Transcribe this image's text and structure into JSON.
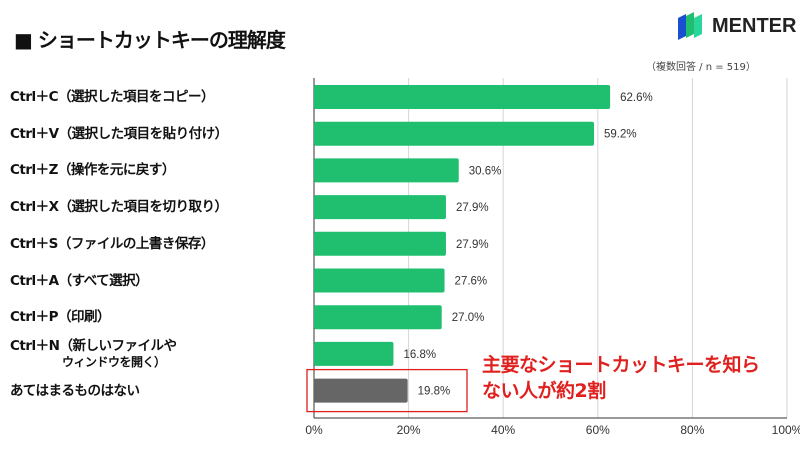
{
  "title": "■ ショートカットキーの理解度",
  "logo": {
    "text": "MENTER"
  },
  "note": "（複数回答 / n = 519）",
  "callout": {
    "line1": "主要なショートカットキーを知ら",
    "line2": "ない人が約2割"
  },
  "colors": {
    "bar": "#1fbf6f",
    "highlight_bar": "#666666",
    "callout": "#e0201e"
  },
  "chart_data": {
    "type": "bar",
    "orientation": "horizontal",
    "categories": [
      "Ctrl＋C（選択した項目をコピー）",
      "Ctrl＋V（選択した項目を貼り付け）",
      "Ctrl＋Z（操作を元に戻す）",
      "Ctrl＋X（選択した項目を切り取り）",
      "Ctrl＋S（ファイルの上書き保存）",
      "Ctrl＋A（すべて選択）",
      "Ctrl＋P（印刷）",
      "Ctrl＋N（新しいファイルや\nウィンドウを開く）",
      "あてはまるものはない"
    ],
    "values": [
      62.6,
      59.2,
      30.6,
      27.9,
      27.9,
      27.6,
      27.0,
      16.8,
      19.8
    ],
    "data_labels": [
      "62.6%",
      "59.2%",
      "30.6%",
      "27.9%",
      "27.9%",
      "27.6%",
      "27.0%",
      "16.8%",
      "19.8%"
    ],
    "xlim": [
      0,
      100
    ],
    "x_ticks": [
      "0%",
      "20%",
      "40%",
      "60%",
      "80%",
      "100%"
    ],
    "grid": true,
    "highlighted_category": "あてはまるものはない"
  }
}
